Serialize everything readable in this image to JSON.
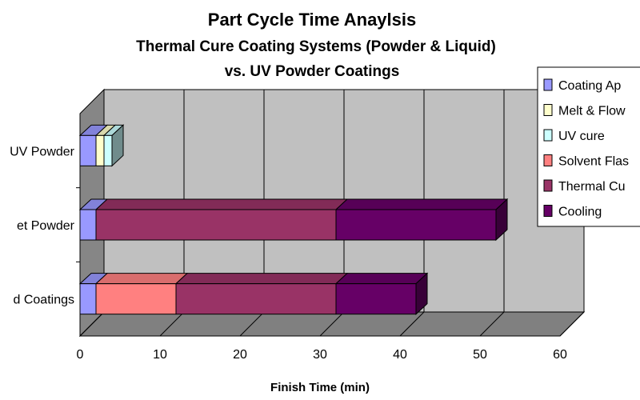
{
  "chart_data": {
    "type": "bar",
    "orientation": "horizontal",
    "stacked": true,
    "style": "3d",
    "title": "Part Cycle Time Anaylsis",
    "subtitle": [
      "Thermal Cure Coating Systems (Powder & Liquid)",
      "vs. UV Powder Coatings"
    ],
    "xlabel": "Finish Time (min)",
    "ylabel": "",
    "xlim": [
      0,
      60
    ],
    "xticks": [
      "0",
      "10",
      "20",
      "30",
      "40",
      "50",
      "60"
    ],
    "grid": true,
    "legend_position": "top-right",
    "categories": [
      "UV Powder",
      "et Powder",
      "d Coatings"
    ],
    "series": [
      {
        "name": "Coating Ap",
        "color": "#9999ff",
        "values": [
          2,
          2,
          2
        ]
      },
      {
        "name": "Melt & Flow",
        "color": "#ffffcc",
        "values": [
          1,
          0,
          0
        ]
      },
      {
        "name": "UV cure",
        "color": "#ccffff",
        "values": [
          1,
          0,
          0
        ]
      },
      {
        "name": "Solvent Flas",
        "color": "#ff8080",
        "values": [
          0,
          0,
          10
        ]
      },
      {
        "name": "Thermal Cu",
        "color": "#993366",
        "values": [
          0,
          30,
          20
        ]
      },
      {
        "name": "Cooling",
        "color": "#660066",
        "values": [
          0,
          20,
          10
        ]
      }
    ],
    "wall_color": "#c0c0c0",
    "floor_color": "#808080"
  }
}
